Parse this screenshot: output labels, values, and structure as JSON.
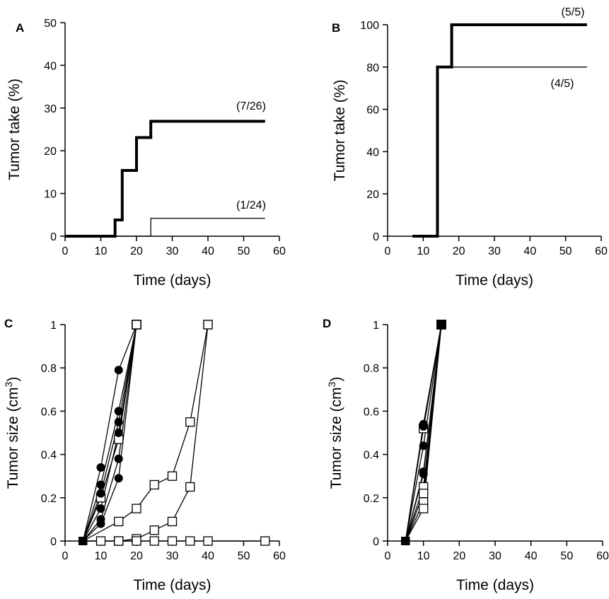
{
  "chart_data": [
    {
      "panel": "A",
      "type": "line",
      "step": true,
      "xlabel": "Time (days)",
      "ylabel": "Tumor take (%)",
      "xlim": [
        0,
        60
      ],
      "ylim": [
        0,
        50
      ],
      "xticks": [
        0,
        10,
        20,
        30,
        40,
        50,
        60
      ],
      "yticks": [
        0,
        10,
        20,
        30,
        40,
        50
      ],
      "series": [
        {
          "style": "thick",
          "x": [
            0,
            14,
            14,
            16,
            16,
            20,
            20,
            24,
            24,
            56
          ],
          "y": [
            0,
            0,
            3.8,
            3.8,
            15.4,
            15.4,
            23.1,
            23.1,
            26.9,
            26.9
          ],
          "label": "(7/26)"
        },
        {
          "style": "thin",
          "x": [
            0,
            24,
            24,
            56
          ],
          "y": [
            0,
            0,
            4.2,
            4.2
          ],
          "label": "(1/24)"
        }
      ]
    },
    {
      "panel": "B",
      "type": "line",
      "step": true,
      "xlabel": "Time (days)",
      "ylabel": "Tumor take (%)",
      "xlim": [
        0,
        60
      ],
      "ylim": [
        0,
        100
      ],
      "xticks": [
        0,
        10,
        20,
        30,
        40,
        50,
        60
      ],
      "yticks": [
        0,
        20,
        40,
        60,
        80,
        100
      ],
      "series": [
        {
          "style": "thick",
          "x": [
            7,
            14,
            14,
            18,
            18,
            56
          ],
          "y": [
            0,
            0,
            80,
            80,
            100,
            100
          ],
          "label": "(5/5)"
        },
        {
          "style": "thin",
          "x": [
            7,
            14,
            14,
            56
          ],
          "y": [
            0,
            0,
            80,
            80
          ],
          "label": "(4/5)"
        }
      ]
    },
    {
      "panel": "C",
      "type": "line",
      "xlabel": "Time (days)",
      "ylabel": "Tumor size (cm",
      "ylabel_sup": "3",
      "ylabel_end": ")",
      "xlim": [
        0,
        60
      ],
      "ylim": [
        0,
        1
      ],
      "xticks": [
        0,
        10,
        20,
        30,
        40,
        50,
        60
      ],
      "yticks": [
        0,
        0.2,
        0.4,
        0.6,
        0.8,
        1
      ],
      "yticklabels": [
        "0",
        "0.2",
        "0.4",
        "0.6",
        "0.8",
        "1"
      ],
      "series": [
        {
          "marker": "circle-filled",
          "x": [
            5,
            10,
            15,
            20
          ],
          "y": [
            0,
            0.34,
            0.79,
            1
          ]
        },
        {
          "marker": "circle-filled",
          "x": [
            5,
            10,
            15,
            20
          ],
          "y": [
            0,
            0.26,
            0.6,
            1
          ]
        },
        {
          "marker": "circle-filled",
          "x": [
            5,
            10,
            15,
            20
          ],
          "y": [
            0,
            0.22,
            0.55,
            1
          ]
        },
        {
          "marker": "circle-filled",
          "x": [
            5,
            10,
            15,
            20
          ],
          "y": [
            0,
            0.15,
            0.5,
            1
          ]
        },
        {
          "marker": "circle-filled",
          "x": [
            5,
            10,
            15,
            20
          ],
          "y": [
            0,
            0.1,
            0.38,
            1
          ]
        },
        {
          "marker": "circle-filled",
          "x": [
            5,
            10,
            15,
            20
          ],
          "y": [
            0,
            0.08,
            0.29,
            1
          ]
        },
        {
          "marker": "square-open",
          "x": [
            5,
            10,
            15,
            20
          ],
          "y": [
            0,
            0.2,
            0.47,
            1
          ]
        },
        {
          "marker": "square-open",
          "x": [
            5,
            15,
            20,
            25,
            30,
            35,
            40
          ],
          "y": [
            0,
            0.09,
            0.15,
            0.26,
            0.3,
            0.55,
            1
          ]
        },
        {
          "marker": "square-open",
          "x": [
            5,
            15,
            20,
            25,
            30,
            35,
            40
          ],
          "y": [
            0,
            0,
            0.01,
            0.05,
            0.09,
            0.25,
            1
          ]
        },
        {
          "marker": "square-open",
          "x": [
            5,
            10,
            15,
            20,
            25,
            30,
            35,
            40,
            56
          ],
          "y": [
            0,
            0,
            0,
            0,
            0,
            0,
            0,
            0,
            0
          ]
        }
      ]
    },
    {
      "panel": "D",
      "type": "line",
      "xlabel": "Time (days)",
      "ylabel": "Tumor size (cm",
      "ylabel_sup": "3",
      "ylabel_end": ")",
      "xlim": [
        0,
        60
      ],
      "ylim": [
        0,
        1
      ],
      "xticks": [
        0,
        10,
        20,
        30,
        40,
        50,
        60
      ],
      "yticks": [
        0,
        0.2,
        0.4,
        0.6,
        0.8,
        1
      ],
      "yticklabels": [
        "0",
        "0.2",
        "0.4",
        "0.6",
        "0.8",
        "1"
      ],
      "series": [
        {
          "marker": "circle-filled",
          "x": [
            5,
            10,
            15
          ],
          "y": [
            0,
            0.54,
            1
          ]
        },
        {
          "marker": "circle-filled",
          "x": [
            5,
            10,
            15
          ],
          "y": [
            0,
            0.53,
            1
          ]
        },
        {
          "marker": "circle-filled",
          "x": [
            5,
            10,
            15
          ],
          "y": [
            0,
            0.44,
            1
          ]
        },
        {
          "marker": "circle-filled",
          "x": [
            5,
            10,
            15
          ],
          "y": [
            0,
            0.32,
            1
          ]
        },
        {
          "marker": "circle-filled",
          "x": [
            5,
            10,
            15
          ],
          "y": [
            0,
            0.31,
            1
          ]
        },
        {
          "marker": "square-open",
          "x": [
            5,
            10,
            15
          ],
          "y": [
            0,
            0.52,
            1
          ]
        },
        {
          "marker": "square-open",
          "x": [
            5,
            10,
            15
          ],
          "y": [
            0,
            0.25,
            1
          ]
        },
        {
          "marker": "square-open",
          "x": [
            5,
            10,
            15
          ],
          "y": [
            0,
            0.22,
            1
          ]
        },
        {
          "marker": "square-open",
          "x": [
            5,
            10,
            15
          ],
          "y": [
            0,
            0.18,
            1
          ]
        },
        {
          "marker": "square-open",
          "x": [
            5,
            10,
            15
          ],
          "y": [
            0,
            0.15,
            1
          ]
        }
      ]
    }
  ]
}
